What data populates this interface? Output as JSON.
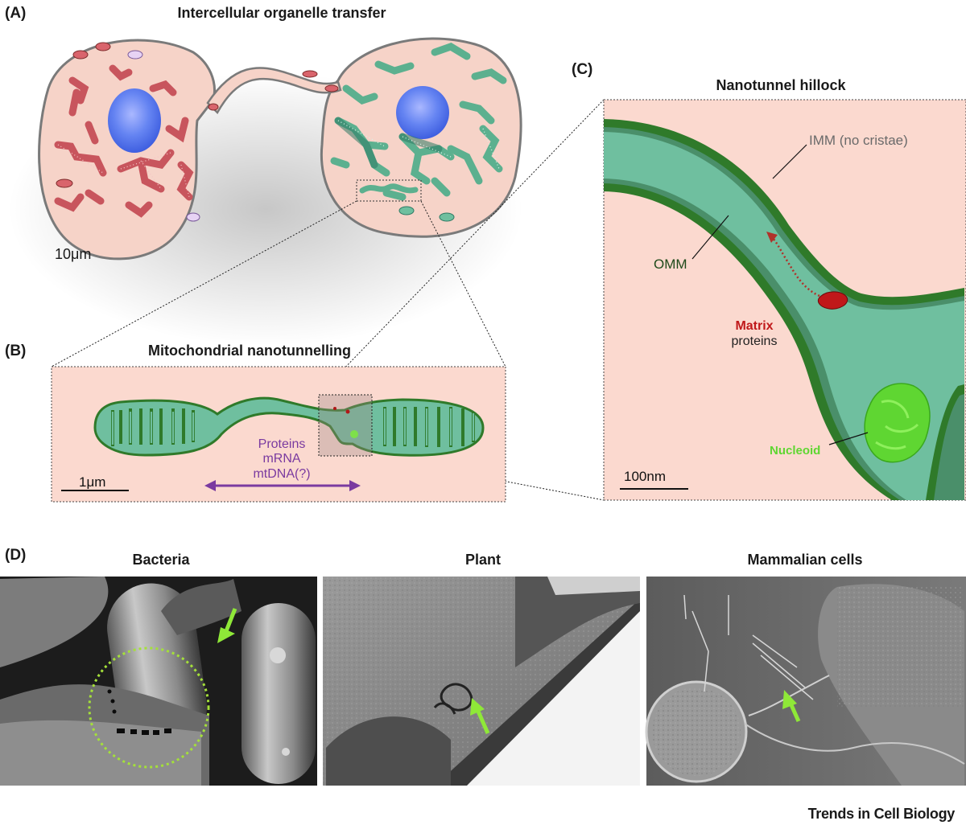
{
  "panels": {
    "a": {
      "letter": "(A)",
      "title": "Intercellular organelle transfer",
      "scale": "10μm"
    },
    "b": {
      "letter": "(B)",
      "title": "Mitochondrial nanotunnelling",
      "scale": "1μm",
      "cargo": [
        "Proteins",
        "mRNA",
        "mtDNA(?)"
      ]
    },
    "c": {
      "letter": "(C)",
      "title": "Nanotunnel hillock",
      "imm": "IMM (no cristae)",
      "omm": "OMM",
      "matrix_bold": "Matrix",
      "matrix_rest": "proteins",
      "nucleoid": "Nucleoid",
      "scale": "100nm"
    },
    "d": {
      "letter": "(D)",
      "bacteria": "Bacteria",
      "plant": "Plant",
      "mammalian": "Mammalian cells"
    }
  },
  "journal": "Trends in Cell Biology",
  "colors": {
    "cell_fill": "#f7d6cc",
    "panel_fill": "#fbd9cf",
    "mito_green": "#6fbf9f",
    "mito_edge": "#2f7a2a",
    "nucleus": "#5a7ff0",
    "red_mito": "#d9646c",
    "cargo_purple": "#7a3aa0",
    "matrix_red": "#c0181a",
    "nucleoid_green": "#5fd632",
    "arrow_green": "#8fe838"
  }
}
